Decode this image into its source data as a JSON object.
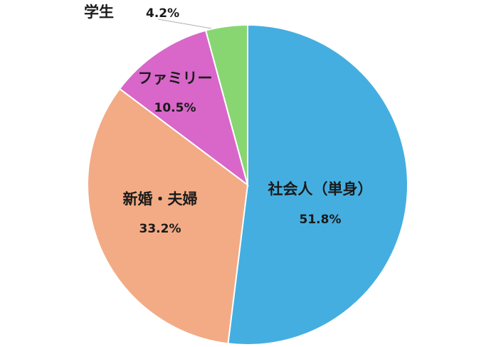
{
  "chart_data": {
    "type": "pie",
    "title": "",
    "categories": [
      "社会人（単身）",
      "新婚・夫婦",
      "ファミリー",
      "学生"
    ],
    "values": [
      51.8,
      33.2,
      10.5,
      4.2
    ],
    "value_labels": [
      "51.8%",
      "33.2%",
      "10.5%",
      "4.2%"
    ],
    "colors": [
      "#45aee0",
      "#f2ab84",
      "#d867c9",
      "#88d672"
    ],
    "start_angle": "12 o'clock",
    "direction": "clockwise",
    "legend": "none"
  }
}
